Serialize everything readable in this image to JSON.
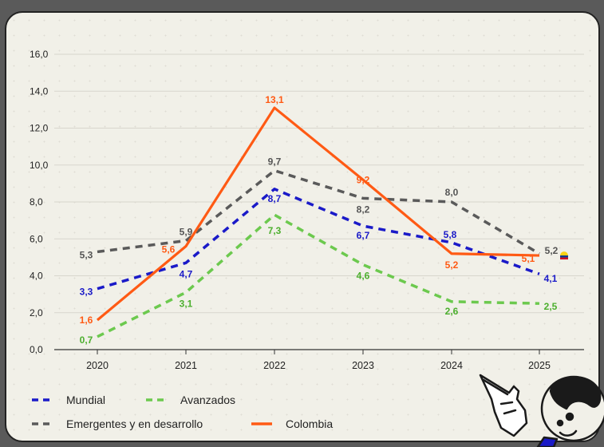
{
  "chart_data": {
    "type": "line",
    "title": "",
    "xlabel": "",
    "ylabel": "",
    "x": [
      "2020",
      "2021",
      "2022",
      "2023",
      "2024",
      "2025"
    ],
    "yticks": [
      "0,0",
      "2,0",
      "4,0",
      "6,0",
      "8,0",
      "10,0",
      "12,0",
      "14,0",
      "16,0"
    ],
    "ylim": [
      0,
      16
    ],
    "grid": "horizontal",
    "legend_position": "bottom-left",
    "series": [
      {
        "name": "Mundial",
        "values": [
          3.3,
          4.7,
          8.7,
          6.7,
          5.8,
          4.1
        ],
        "labels": [
          "3,3",
          "4,7",
          "8,7",
          "6,7",
          "5,8",
          "4,1"
        ],
        "color": "#1a1ac8",
        "style": "dashed"
      },
      {
        "name": "Avanzados",
        "values": [
          0.7,
          3.1,
          7.3,
          4.6,
          2.6,
          2.5
        ],
        "labels": [
          "0,7",
          "3,1",
          "7,3",
          "4,6",
          "2,6",
          "2,5"
        ],
        "color": "#6cc94e",
        "style": "dashed"
      },
      {
        "name": "Emergentes y en desarrollo",
        "values": [
          5.3,
          5.9,
          9.7,
          8.2,
          8.0,
          5.2
        ],
        "labels": [
          "5,3",
          "5,9",
          "9,7",
          "8,2",
          "8,0",
          "5,2"
        ],
        "color": "#5a5a5a",
        "style": "dashed"
      },
      {
        "name": "Colombia",
        "values": [
          1.6,
          5.6,
          13.1,
          9.2,
          5.2,
          5.1
        ],
        "labels": [
          "1,6",
          "5,6",
          "13,1",
          "9,2",
          "5,2",
          "5,1"
        ],
        "color": "#ff5a14",
        "style": "solid"
      }
    ]
  },
  "icons": {
    "flag": "colombia-flag-icon",
    "mascot": "pointing-hand-character-icon"
  }
}
